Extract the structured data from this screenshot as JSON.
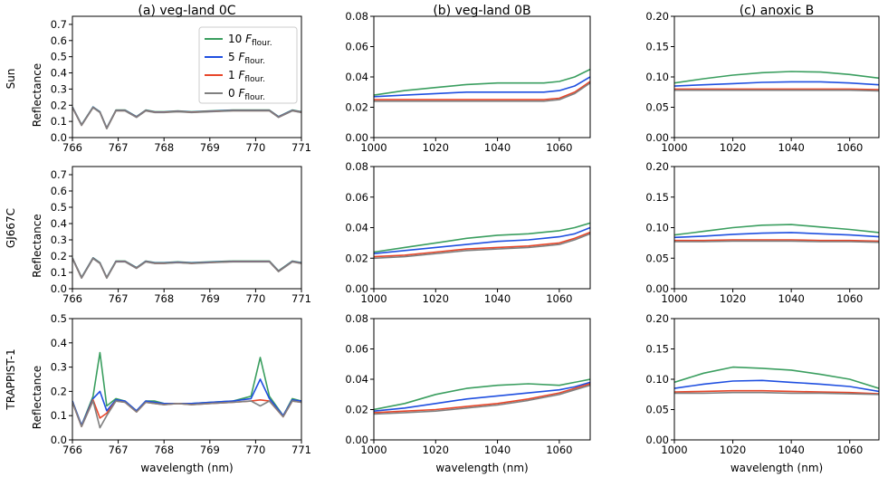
{
  "figure": {
    "column_titles": [
      "(a) veg-land 0C",
      "(b) veg-land 0B",
      "(c) anoxic B"
    ],
    "row_labels": [
      "Sun",
      "GJ667C",
      "TRAPPIST-1"
    ],
    "ylabel": "Reflectance",
    "xlabel": "wavelength (nm)",
    "legend": {
      "placement": "top-right of panel (a) Sun",
      "entries": [
        {
          "prefix": "10 ",
          "symbol": "F",
          "sub": "flour.",
          "color": "#3a9e5f"
        },
        {
          "prefix": " 5 ",
          "symbol": "F",
          "sub": "flour.",
          "color": "#1f4fe0"
        },
        {
          "prefix": " 1 ",
          "symbol": "F",
          "sub": "flour.",
          "color": "#e8462a"
        },
        {
          "prefix": " 0 ",
          "symbol": "F",
          "sub": "flour.",
          "color": "#808080"
        }
      ]
    }
  },
  "chart_data": [
    {
      "type": "line",
      "panel": "a-sun",
      "grid": false,
      "xlim": [
        766,
        771
      ],
      "xticks": [
        "766",
        "767",
        "768",
        "769",
        "770",
        "771"
      ],
      "ylim": [
        0,
        0.75
      ],
      "yticks": [
        "0.0",
        "0.1",
        "0.2",
        "0.3",
        "0.4",
        "0.5",
        "0.6",
        "0.7"
      ],
      "x": [
        766.0,
        766.2,
        766.45,
        766.6,
        766.75,
        766.95,
        767.15,
        767.4,
        767.6,
        767.8,
        768.0,
        768.3,
        768.6,
        769.0,
        769.5,
        770.0,
        770.3,
        770.5,
        770.8,
        771.0
      ],
      "series": [
        {
          "name": "10 Fflour.",
          "color": "#3a9e5f",
          "values": [
            0.19,
            0.08,
            0.19,
            0.16,
            0.06,
            0.17,
            0.17,
            0.13,
            0.17,
            0.16,
            0.16,
            0.165,
            0.16,
            0.165,
            0.17,
            0.17,
            0.17,
            0.13,
            0.17,
            0.16
          ]
        },
        {
          "name": "5 Fflour.",
          "color": "#1f4fe0",
          "values": [
            0.188,
            0.078,
            0.188,
            0.158,
            0.058,
            0.168,
            0.168,
            0.128,
            0.168,
            0.158,
            0.158,
            0.163,
            0.158,
            0.163,
            0.168,
            0.168,
            0.168,
            0.128,
            0.168,
            0.158
          ]
        },
        {
          "name": "1 Fflour.",
          "color": "#e8462a",
          "values": [
            0.186,
            0.076,
            0.186,
            0.156,
            0.056,
            0.166,
            0.166,
            0.126,
            0.166,
            0.156,
            0.156,
            0.161,
            0.156,
            0.161,
            0.166,
            0.166,
            0.166,
            0.126,
            0.166,
            0.156
          ]
        },
        {
          "name": "0 Fflour.",
          "color": "#808080",
          "values": [
            0.185,
            0.075,
            0.185,
            0.155,
            0.055,
            0.165,
            0.165,
            0.125,
            0.165,
            0.155,
            0.155,
            0.16,
            0.155,
            0.16,
            0.165,
            0.165,
            0.165,
            0.125,
            0.165,
            0.155
          ]
        }
      ]
    },
    {
      "type": "line",
      "panel": "b-sun",
      "grid": false,
      "xlim": [
        1000,
        1070
      ],
      "xticks": [
        "1000",
        "1020",
        "1040",
        "1060"
      ],
      "ylim": [
        0,
        0.08
      ],
      "yticks": [
        "0.00",
        "0.02",
        "0.04",
        "0.06",
        "0.08"
      ],
      "x": [
        1000,
        1010,
        1020,
        1030,
        1040,
        1050,
        1055,
        1060,
        1065,
        1070
      ],
      "series": [
        {
          "name": "10 Fflour.",
          "color": "#3a9e5f",
          "values": [
            0.028,
            0.031,
            0.033,
            0.035,
            0.036,
            0.036,
            0.036,
            0.037,
            0.04,
            0.045
          ]
        },
        {
          "name": "5 Fflour.",
          "color": "#1f4fe0",
          "values": [
            0.027,
            0.028,
            0.029,
            0.03,
            0.03,
            0.03,
            0.03,
            0.031,
            0.034,
            0.04
          ]
        },
        {
          "name": "1 Fflour.",
          "color": "#e8462a",
          "values": [
            0.025,
            0.025,
            0.025,
            0.025,
            0.025,
            0.025,
            0.025,
            0.026,
            0.03,
            0.037
          ]
        },
        {
          "name": "0 Fflour.",
          "color": "#808080",
          "values": [
            0.024,
            0.024,
            0.024,
            0.024,
            0.024,
            0.024,
            0.024,
            0.025,
            0.029,
            0.036
          ]
        }
      ]
    },
    {
      "type": "line",
      "panel": "c-sun",
      "grid": false,
      "xlim": [
        1000,
        1070
      ],
      "xticks": [
        "1000",
        "1020",
        "1040",
        "1060"
      ],
      "ylim": [
        0,
        0.2
      ],
      "yticks": [
        "0.00",
        "0.05",
        "0.10",
        "0.15",
        "0.20"
      ],
      "x": [
        1000,
        1010,
        1020,
        1030,
        1040,
        1050,
        1060,
        1070
      ],
      "series": [
        {
          "name": "10 Fflour.",
          "color": "#3a9e5f",
          "values": [
            0.09,
            0.097,
            0.103,
            0.107,
            0.109,
            0.108,
            0.104,
            0.098
          ]
        },
        {
          "name": "5 Fflour.",
          "color": "#1f4fe0",
          "values": [
            0.085,
            0.087,
            0.089,
            0.091,
            0.092,
            0.092,
            0.09,
            0.087
          ]
        },
        {
          "name": "1 Fflour.",
          "color": "#e8462a",
          "values": [
            0.08,
            0.08,
            0.08,
            0.08,
            0.08,
            0.08,
            0.08,
            0.079
          ]
        },
        {
          "name": "0 Fflour.",
          "color": "#808080",
          "values": [
            0.078,
            0.078,
            0.078,
            0.078,
            0.078,
            0.078,
            0.078,
            0.077
          ]
        }
      ]
    },
    {
      "type": "line",
      "panel": "a-gj667c",
      "grid": false,
      "xlim": [
        766,
        771
      ],
      "xticks": [
        "766",
        "767",
        "768",
        "769",
        "770",
        "771"
      ],
      "ylim": [
        0,
        0.75
      ],
      "yticks": [
        "0.0",
        "0.1",
        "0.2",
        "0.3",
        "0.4",
        "0.5",
        "0.6",
        "0.7"
      ],
      "x": [
        766.0,
        766.2,
        766.45,
        766.6,
        766.75,
        766.95,
        767.15,
        767.4,
        767.6,
        767.8,
        768.0,
        768.3,
        768.6,
        769.0,
        769.5,
        770.0,
        770.3,
        770.5,
        770.8,
        771.0
      ],
      "series": [
        {
          "name": "10 Fflour.",
          "color": "#3a9e5f",
          "values": [
            0.19,
            0.07,
            0.19,
            0.16,
            0.07,
            0.17,
            0.17,
            0.13,
            0.17,
            0.16,
            0.16,
            0.165,
            0.16,
            0.165,
            0.17,
            0.17,
            0.17,
            0.11,
            0.17,
            0.16
          ]
        },
        {
          "name": "5 Fflour.",
          "color": "#1f4fe0",
          "values": [
            0.188,
            0.068,
            0.188,
            0.158,
            0.068,
            0.168,
            0.168,
            0.128,
            0.168,
            0.158,
            0.158,
            0.163,
            0.158,
            0.163,
            0.168,
            0.168,
            0.168,
            0.108,
            0.168,
            0.158
          ]
        },
        {
          "name": "1 Fflour.",
          "color": "#e8462a",
          "values": [
            0.186,
            0.066,
            0.186,
            0.156,
            0.066,
            0.166,
            0.166,
            0.126,
            0.166,
            0.156,
            0.156,
            0.161,
            0.156,
            0.161,
            0.166,
            0.166,
            0.166,
            0.106,
            0.166,
            0.156
          ]
        },
        {
          "name": "0 Fflour.",
          "color": "#808080",
          "values": [
            0.185,
            0.065,
            0.185,
            0.155,
            0.065,
            0.165,
            0.165,
            0.125,
            0.165,
            0.155,
            0.155,
            0.16,
            0.155,
            0.16,
            0.165,
            0.165,
            0.165,
            0.105,
            0.165,
            0.155
          ]
        }
      ]
    },
    {
      "type": "line",
      "panel": "b-gj667c",
      "grid": false,
      "xlim": [
        1000,
        1070
      ],
      "xticks": [
        "1000",
        "1020",
        "1040",
        "1060"
      ],
      "ylim": [
        0,
        0.08
      ],
      "yticks": [
        "0.00",
        "0.02",
        "0.04",
        "0.06",
        "0.08"
      ],
      "x": [
        1000,
        1010,
        1020,
        1030,
        1040,
        1050,
        1055,
        1060,
        1065,
        1070
      ],
      "series": [
        {
          "name": "10 Fflour.",
          "color": "#3a9e5f",
          "values": [
            0.024,
            0.027,
            0.03,
            0.033,
            0.035,
            0.036,
            0.037,
            0.038,
            0.04,
            0.043
          ]
        },
        {
          "name": "5 Fflour.",
          "color": "#1f4fe0",
          "values": [
            0.023,
            0.025,
            0.027,
            0.029,
            0.031,
            0.032,
            0.033,
            0.034,
            0.036,
            0.04
          ]
        },
        {
          "name": "1 Fflour.",
          "color": "#e8462a",
          "values": [
            0.021,
            0.022,
            0.024,
            0.026,
            0.027,
            0.028,
            0.029,
            0.03,
            0.033,
            0.037
          ]
        },
        {
          "name": "0 Fflour.",
          "color": "#808080",
          "values": [
            0.02,
            0.021,
            0.023,
            0.025,
            0.026,
            0.027,
            0.028,
            0.029,
            0.032,
            0.036
          ]
        }
      ]
    },
    {
      "type": "line",
      "panel": "c-gj667c",
      "grid": false,
      "xlim": [
        1000,
        1070
      ],
      "xticks": [
        "1000",
        "1020",
        "1040",
        "1060"
      ],
      "ylim": [
        0,
        0.2
      ],
      "yticks": [
        "0.00",
        "0.05",
        "0.10",
        "0.15",
        "0.20"
      ],
      "x": [
        1000,
        1010,
        1020,
        1030,
        1040,
        1050,
        1060,
        1070
      ],
      "series": [
        {
          "name": "10 Fflour.",
          "color": "#3a9e5f",
          "values": [
            0.088,
            0.094,
            0.1,
            0.104,
            0.105,
            0.101,
            0.097,
            0.092
          ]
        },
        {
          "name": "5 Fflour.",
          "color": "#1f4fe0",
          "values": [
            0.084,
            0.086,
            0.089,
            0.091,
            0.092,
            0.09,
            0.088,
            0.085
          ]
        },
        {
          "name": "1 Fflour.",
          "color": "#e8462a",
          "values": [
            0.079,
            0.079,
            0.08,
            0.08,
            0.08,
            0.079,
            0.079,
            0.078
          ]
        },
        {
          "name": "0 Fflour.",
          "color": "#808080",
          "values": [
            0.077,
            0.077,
            0.078,
            0.078,
            0.078,
            0.077,
            0.077,
            0.076
          ]
        }
      ]
    },
    {
      "type": "line",
      "panel": "a-trappist1",
      "grid": false,
      "xlim": [
        766,
        771
      ],
      "xticks": [
        "766",
        "767",
        "768",
        "769",
        "770",
        "771"
      ],
      "ylim": [
        0,
        0.5
      ],
      "yticks": [
        "0.0",
        "0.1",
        "0.2",
        "0.3",
        "0.4",
        "0.5"
      ],
      "x": [
        766.0,
        766.2,
        766.45,
        766.6,
        766.75,
        766.95,
        767.15,
        767.4,
        767.6,
        767.8,
        768.0,
        768.3,
        768.6,
        769.0,
        769.5,
        769.9,
        770.1,
        770.3,
        770.6,
        770.8,
        771.0
      ],
      "series": [
        {
          "name": "10 Fflour.",
          "color": "#3a9e5f",
          "values": [
            0.16,
            0.06,
            0.18,
            0.36,
            0.14,
            0.17,
            0.16,
            0.12,
            0.16,
            0.16,
            0.15,
            0.15,
            0.15,
            0.155,
            0.16,
            0.18,
            0.34,
            0.18,
            0.1,
            0.17,
            0.16
          ]
        },
        {
          "name": "5 Fflour.",
          "color": "#1f4fe0",
          "values": [
            0.16,
            0.06,
            0.17,
            0.2,
            0.12,
            0.165,
            0.16,
            0.12,
            0.16,
            0.155,
            0.15,
            0.15,
            0.15,
            0.155,
            0.16,
            0.17,
            0.25,
            0.17,
            0.1,
            0.165,
            0.16
          ]
        },
        {
          "name": "1 Fflour.",
          "color": "#e8462a",
          "values": [
            0.155,
            0.055,
            0.165,
            0.09,
            0.11,
            0.16,
            0.155,
            0.115,
            0.155,
            0.15,
            0.145,
            0.15,
            0.145,
            0.15,
            0.155,
            0.16,
            0.165,
            0.16,
            0.095,
            0.16,
            0.155
          ]
        },
        {
          "name": "0 Fflour.",
          "color": "#808080",
          "values": [
            0.155,
            0.055,
            0.16,
            0.05,
            0.1,
            0.16,
            0.155,
            0.115,
            0.155,
            0.15,
            0.145,
            0.15,
            0.145,
            0.15,
            0.155,
            0.16,
            0.14,
            0.16,
            0.095,
            0.16,
            0.155
          ]
        }
      ]
    },
    {
      "type": "line",
      "panel": "b-trappist1",
      "grid": false,
      "xlim": [
        1000,
        1070
      ],
      "xticks": [
        "1000",
        "1020",
        "1040",
        "1060"
      ],
      "ylim": [
        0,
        0.08
      ],
      "yticks": [
        "0.00",
        "0.02",
        "0.04",
        "0.06",
        "0.08"
      ],
      "x": [
        1000,
        1010,
        1020,
        1030,
        1040,
        1050,
        1060,
        1065,
        1070
      ],
      "series": [
        {
          "name": "10 Fflour.",
          "color": "#3a9e5f",
          "values": [
            0.02,
            0.024,
            0.03,
            0.034,
            0.036,
            0.037,
            0.036,
            0.038,
            0.04
          ]
        },
        {
          "name": "5 Fflour.",
          "color": "#1f4fe0",
          "values": [
            0.019,
            0.021,
            0.024,
            0.027,
            0.029,
            0.031,
            0.033,
            0.035,
            0.038
          ]
        },
        {
          "name": "1 Fflour.",
          "color": "#e8462a",
          "values": [
            0.018,
            0.019,
            0.02,
            0.022,
            0.024,
            0.027,
            0.031,
            0.034,
            0.037
          ]
        },
        {
          "name": "0 Fflour.",
          "color": "#808080",
          "values": [
            0.017,
            0.018,
            0.019,
            0.021,
            0.023,
            0.026,
            0.03,
            0.033,
            0.036
          ]
        }
      ]
    },
    {
      "type": "line",
      "panel": "c-trappist1",
      "grid": false,
      "xlim": [
        1000,
        1070
      ],
      "xticks": [
        "1000",
        "1020",
        "1040",
        "1060"
      ],
      "ylim": [
        0,
        0.2
      ],
      "yticks": [
        "0.00",
        "0.05",
        "0.10",
        "0.15",
        "0.20"
      ],
      "x": [
        1000,
        1010,
        1020,
        1030,
        1040,
        1050,
        1060,
        1070
      ],
      "series": [
        {
          "name": "10 Fflour.",
          "color": "#3a9e5f",
          "values": [
            0.095,
            0.11,
            0.12,
            0.118,
            0.115,
            0.108,
            0.1,
            0.085
          ]
        },
        {
          "name": "5 Fflour.",
          "color": "#1f4fe0",
          "values": [
            0.085,
            0.092,
            0.097,
            0.098,
            0.095,
            0.092,
            0.088,
            0.08
          ]
        },
        {
          "name": "1 Fflour.",
          "color": "#e8462a",
          "values": [
            0.079,
            0.08,
            0.081,
            0.081,
            0.08,
            0.079,
            0.078,
            0.076
          ]
        },
        {
          "name": "0 Fflour.",
          "color": "#808080",
          "values": [
            0.077,
            0.077,
            0.078,
            0.078,
            0.077,
            0.077,
            0.076,
            0.075
          ]
        }
      ]
    }
  ]
}
